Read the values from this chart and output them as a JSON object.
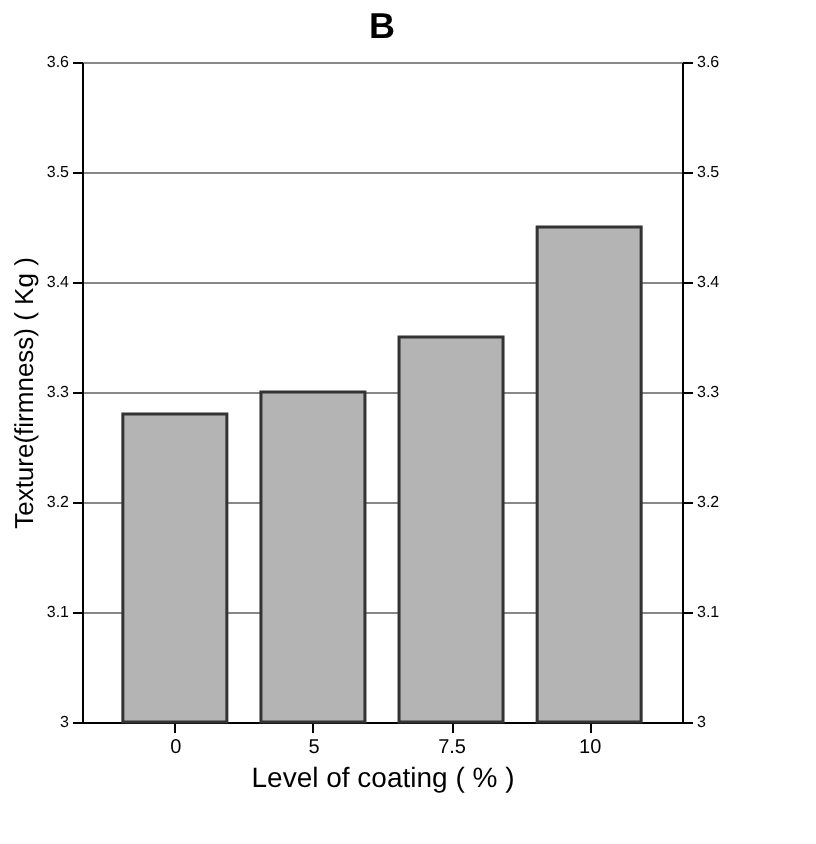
{
  "chart_data": {
    "type": "bar",
    "title": "B",
    "xlabel": "Level of coating ( % )",
    "ylabel": "Texture(firmness) ( Kg )",
    "categories": [
      "0",
      "5",
      "7.5",
      "10"
    ],
    "values": [
      3.28,
      3.3,
      3.35,
      3.45
    ],
    "color": "#b4b4b4",
    "ylim": [
      3,
      3.6
    ],
    "yticks": [
      3,
      3.1,
      3.2,
      3.3,
      3.4,
      3.5,
      3.6
    ],
    "y2lim": [
      3,
      3.6
    ],
    "y2ticks": [
      3,
      3.1,
      3.2,
      3.3,
      3.4,
      3.5,
      3.6
    ],
    "grid": "y"
  }
}
